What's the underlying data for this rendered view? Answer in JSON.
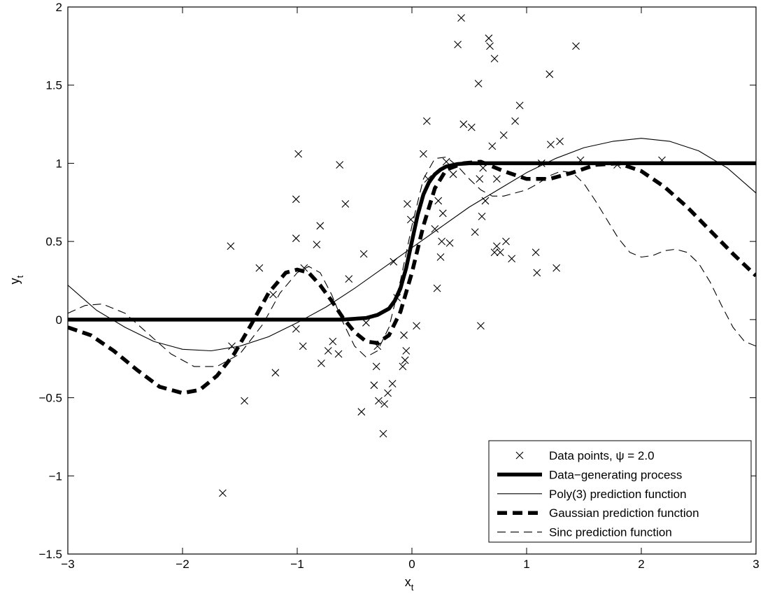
{
  "chart_data": {
    "type": "line",
    "title": "",
    "xlabel": "x",
    "xlabel_sub": "t",
    "ylabel": "y",
    "ylabel_sub": "t",
    "xlim": [
      -3,
      3
    ],
    "ylim": [
      -1.5,
      2
    ],
    "x_ticks": [
      -3,
      -2,
      -1,
      0,
      1,
      2,
      3
    ],
    "x_tick_labels": [
      "−3",
      "−2",
      "−1",
      "0",
      "1",
      "2",
      "3"
    ],
    "y_ticks": [
      -1.5,
      -1,
      -0.5,
      0,
      0.5,
      1,
      1.5,
      2
    ],
    "y_tick_labels": [
      "−1.5",
      "−1",
      "−0.5",
      "0",
      "0.5",
      "1",
      "1.5",
      "2"
    ],
    "grid": false,
    "legend_position": "bottom-right",
    "scatter": {
      "name": "Data points, ψ = 2.0",
      "marker": "x",
      "points": [
        [
          -1.65,
          -1.11
        ],
        [
          -1.58,
          0.47
        ],
        [
          -1.57,
          -0.17
        ],
        [
          -1.46,
          -0.52
        ],
        [
          -1.33,
          0.33
        ],
        [
          -1.21,
          0.16
        ],
        [
          -1.19,
          -0.34
        ],
        [
          -1.01,
          0.52
        ],
        [
          -1.01,
          0.77
        ],
        [
          -0.99,
          1.06
        ],
        [
          -1.01,
          -0.06
        ],
        [
          -0.95,
          -0.17
        ],
        [
          -0.94,
          0.33
        ],
        [
          -0.83,
          0.48
        ],
        [
          -0.8,
          0.6
        ],
        [
          -0.79,
          -0.28
        ],
        [
          -0.73,
          -0.2
        ],
        [
          -0.69,
          -0.14
        ],
        [
          -0.64,
          -0.22
        ],
        [
          -0.63,
          0.99
        ],
        [
          -0.58,
          0.74
        ],
        [
          -0.55,
          0.26
        ],
        [
          -0.44,
          -0.59
        ],
        [
          -0.42,
          0.42
        ],
        [
          -0.4,
          -0.02
        ],
        [
          -0.33,
          -0.42
        ],
        [
          -0.31,
          -0.3
        ],
        [
          -0.3,
          -0.17
        ],
        [
          -0.29,
          -0.52
        ],
        [
          -0.25,
          -0.73
        ],
        [
          -0.24,
          -0.54
        ],
        [
          -0.21,
          -0.47
        ],
        [
          -0.17,
          -0.41
        ],
        [
          -0.16,
          0.37
        ],
        [
          -0.13,
          0.14
        ],
        [
          -0.08,
          -0.3
        ],
        [
          -0.07,
          -0.1
        ],
        [
          -0.05,
          -0.2
        ],
        [
          -0.04,
          0.74
        ],
        [
          -0.06,
          -0.26
        ],
        [
          -0.01,
          0.64
        ],
        [
          0.04,
          -0.04
        ],
        [
          0.1,
          1.06
        ],
        [
          0.13,
          1.27
        ],
        [
          0.14,
          0.9
        ],
        [
          0.2,
          0.58
        ],
        [
          0.22,
          0.2
        ],
        [
          0.23,
          0.76
        ],
        [
          0.25,
          0.4
        ],
        [
          0.26,
          0.5
        ],
        [
          0.27,
          0.68
        ],
        [
          0.3,
          1.01
        ],
        [
          0.33,
          0.49
        ],
        [
          0.36,
          0.93
        ],
        [
          0.4,
          1.76
        ],
        [
          0.43,
          1.93
        ],
        [
          0.45,
          1.25
        ],
        [
          0.52,
          1.23
        ],
        [
          0.55,
          0.56
        ],
        [
          0.58,
          1.51
        ],
        [
          0.59,
          0.9
        ],
        [
          0.6,
          -0.04
        ],
        [
          0.61,
          0.66
        ],
        [
          0.62,
          0.97
        ],
        [
          0.64,
          0.76
        ],
        [
          0.67,
          1.8
        ],
        [
          0.68,
          1.75
        ],
        [
          0.7,
          1.11
        ],
        [
          0.72,
          1.67
        ],
        [
          0.72,
          0.43
        ],
        [
          0.74,
          0.9
        ],
        [
          0.74,
          0.47
        ],
        [
          0.77,
          0.43
        ],
        [
          0.8,
          1.18
        ],
        [
          0.82,
          0.5
        ],
        [
          0.87,
          0.39
        ],
        [
          0.9,
          1.27
        ],
        [
          0.94,
          1.37
        ],
        [
          1.08,
          0.43
        ],
        [
          1.09,
          0.3
        ],
        [
          1.13,
          1.0
        ],
        [
          1.2,
          1.57
        ],
        [
          1.21,
          1.12
        ],
        [
          1.26,
          0.33
        ],
        [
          1.29,
          1.14
        ],
        [
          1.43,
          1.75
        ],
        [
          1.47,
          1.02
        ],
        [
          1.79,
          0.99
        ],
        [
          2.18,
          1.02
        ]
      ]
    },
    "series": [
      {
        "name": "Data−generating process",
        "style": "thick-solid",
        "x": [
          -3,
          -0.6,
          -0.4,
          -0.3,
          -0.2,
          -0.15,
          -0.1,
          -0.05,
          0,
          0.05,
          0.1,
          0.15,
          0.2,
          0.25,
          0.3,
          0.4,
          0.5,
          0.7,
          1,
          3
        ],
        "y": [
          0,
          0,
          0.01,
          0.03,
          0.07,
          0.12,
          0.2,
          0.33,
          0.5,
          0.67,
          0.8,
          0.88,
          0.93,
          0.96,
          0.98,
          0.995,
          1,
          1,
          1,
          1
        ]
      },
      {
        "name": "Poly(3) prediction function",
        "style": "thin-solid",
        "x": [
          -3,
          -2.75,
          -2.5,
          -2.25,
          -2,
          -1.75,
          -1.5,
          -1.25,
          -1,
          -0.75,
          -0.5,
          -0.25,
          0,
          0.25,
          0.5,
          0.75,
          1,
          1.25,
          1.5,
          1.75,
          2,
          2.25,
          2.5,
          2.75,
          3
        ],
        "y": [
          0.22,
          0.06,
          -0.05,
          -0.14,
          -0.19,
          -0.2,
          -0.17,
          -0.11,
          -0.02,
          0.08,
          0.2,
          0.33,
          0.46,
          0.59,
          0.72,
          0.83,
          0.94,
          1.03,
          1.1,
          1.14,
          1.16,
          1.14,
          1.08,
          0.97,
          0.81
        ]
      },
      {
        "name": "Gaussian prediction function",
        "style": "thick-dashed",
        "x": [
          -3,
          -2.8,
          -2.6,
          -2.4,
          -2.2,
          -2,
          -1.85,
          -1.7,
          -1.55,
          -1.4,
          -1.25,
          -1.1,
          -1.0,
          -0.9,
          -0.8,
          -0.7,
          -0.6,
          -0.5,
          -0.4,
          -0.3,
          -0.2,
          -0.1,
          0,
          0.1,
          0.2,
          0.3,
          0.45,
          0.6,
          0.8,
          1.0,
          1.2,
          1.4,
          1.6,
          1.8,
          2.0,
          2.2,
          2.4,
          2.6,
          2.8,
          3
        ],
        "y": [
          -0.05,
          -0.1,
          -0.2,
          -0.32,
          -0.43,
          -0.47,
          -0.45,
          -0.36,
          -0.22,
          -0.03,
          0.17,
          0.3,
          0.32,
          0.3,
          0.22,
          0.12,
          0.01,
          -0.08,
          -0.14,
          -0.15,
          -0.1,
          0.05,
          0.3,
          0.6,
          0.84,
          0.96,
          1.0,
          1.01,
          0.95,
          0.9,
          0.9,
          0.94,
          0.99,
          1.0,
          0.95,
          0.85,
          0.72,
          0.57,
          0.42,
          0.28
        ]
      },
      {
        "name": "Sinc prediction function",
        "style": "thin-dashed",
        "x": [
          -3,
          -2.85,
          -2.7,
          -2.5,
          -2.3,
          -2.1,
          -1.9,
          -1.7,
          -1.5,
          -1.3,
          -1.15,
          -1.0,
          -0.9,
          -0.8,
          -0.7,
          -0.6,
          -0.5,
          -0.4,
          -0.3,
          -0.2,
          -0.1,
          0,
          0.1,
          0.2,
          0.3,
          0.4,
          0.5,
          0.6,
          0.7,
          0.8,
          0.9,
          1.0,
          1.1,
          1.2,
          1.3,
          1.4,
          1.5,
          1.6,
          1.7,
          1.8,
          1.9,
          2.0,
          2.1,
          2.2,
          2.3,
          2.4,
          2.5,
          2.6,
          2.7,
          2.8,
          2.9,
          3
        ],
        "y": [
          0.04,
          0.09,
          0.1,
          0.04,
          -0.09,
          -0.22,
          -0.3,
          -0.3,
          -0.22,
          -0.03,
          0.17,
          0.3,
          0.34,
          0.3,
          0.16,
          -0.02,
          -0.17,
          -0.24,
          -0.2,
          -0.05,
          0.25,
          0.6,
          0.9,
          1.03,
          1.04,
          0.98,
          0.9,
          0.83,
          0.79,
          0.79,
          0.81,
          0.83,
          0.87,
          0.92,
          0.95,
          0.94,
          0.87,
          0.76,
          0.64,
          0.52,
          0.43,
          0.4,
          0.41,
          0.44,
          0.45,
          0.43,
          0.36,
          0.24,
          0.09,
          -0.05,
          -0.14,
          -0.17
        ]
      }
    ]
  }
}
